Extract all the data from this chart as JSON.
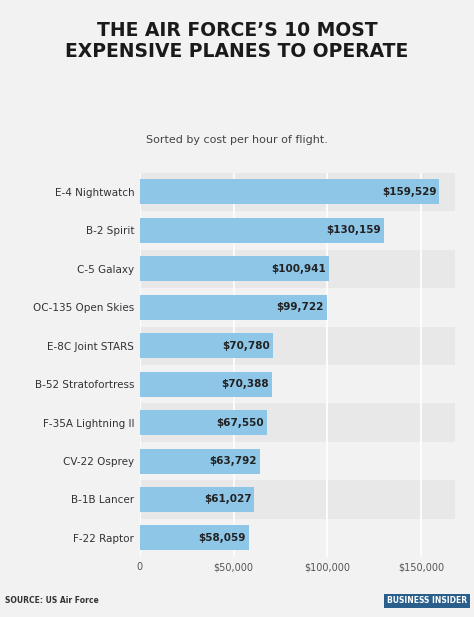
{
  "title": "THE AIR FORCE’S 10 MOST\nEXPENSIVE PLANES TO OPERATE",
  "subtitle": "Sorted by cost per hour of flight.",
  "planes": [
    "E-4 Nightwatch",
    "B-2 Spirit",
    "C-5 Galaxy",
    "OC-135 Open Skies",
    "E-8C Joint STARS",
    "B-52 Stratofortress",
    "F-35A Lightning II",
    "CV-22 Osprey",
    "B-1B Lancer",
    "F-22 Raptor"
  ],
  "values": [
    159529,
    130159,
    100941,
    99722,
    70780,
    70388,
    67550,
    63792,
    61027,
    58059
  ],
  "bar_color": "#8ec6e8",
  "row_color_even": "#e8e8e8",
  "row_color_odd": "#f2f2f2",
  "background_color": "#f2f2f2",
  "title_color": "#1a1a1a",
  "label_color": "#333333",
  "value_color": "#222222",
  "source_text": "SOURCE: US Air Force",
  "source_bold": "SOURCE:",
  "footer_bg": "#c8c8c8",
  "bi_bg": "#2a5f8c",
  "xlim": [
    0,
    168000
  ],
  "xticks": [
    0,
    50000,
    100000,
    150000
  ],
  "xtick_labels": [
    "0",
    "$50,000",
    "$100,000",
    "$150,000"
  ],
  "grid_color": "#ffffff",
  "bar_height": 0.65,
  "title_fontsize": 13.5,
  "subtitle_fontsize": 8,
  "label_fontsize": 7.5,
  "value_fontsize": 7.5,
  "tick_fontsize": 7
}
